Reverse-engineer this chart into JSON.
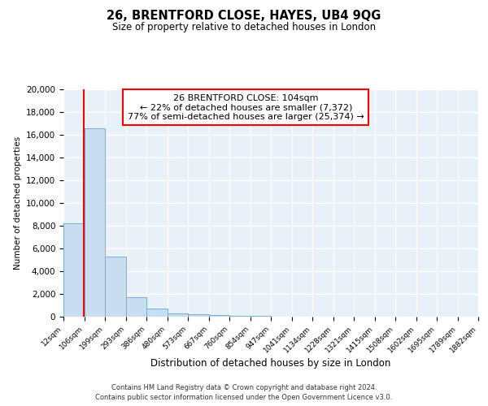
{
  "title": "26, BRENTFORD CLOSE, HAYES, UB4 9QG",
  "subtitle": "Size of property relative to detached houses in London",
  "xlabel": "Distribution of detached houses by size in London",
  "ylabel": "Number of detached properties",
  "bar_color": "#c9ddf0",
  "bar_edge_color": "#7aadd4",
  "background_color": "#e8f0f8",
  "grid_color": "#ffffff",
  "red_line_x": 104,
  "annotation_title": "26 BRENTFORD CLOSE: 104sqm",
  "annotation_line1": "← 22% of detached houses are smaller (7,372)",
  "annotation_line2": "77% of semi-detached houses are larger (25,374) →",
  "bin_edges": [
    12,
    106,
    199,
    293,
    386,
    480,
    573,
    667,
    760,
    854,
    947,
    1041,
    1134,
    1228,
    1321,
    1415,
    1508,
    1602,
    1695,
    1789,
    1882
  ],
  "bin_heights": [
    8200,
    16600,
    5300,
    1750,
    750,
    290,
    200,
    130,
    95,
    55,
    0,
    0,
    0,
    0,
    0,
    0,
    0,
    0,
    0,
    0
  ],
  "ylim": [
    0,
    20000
  ],
  "yticks": [
    0,
    2000,
    4000,
    6000,
    8000,
    10000,
    12000,
    14000,
    16000,
    18000,
    20000
  ],
  "footer_line1": "Contains HM Land Registry data © Crown copyright and database right 2024.",
  "footer_line2": "Contains public sector information licensed under the Open Government Licence v3.0."
}
